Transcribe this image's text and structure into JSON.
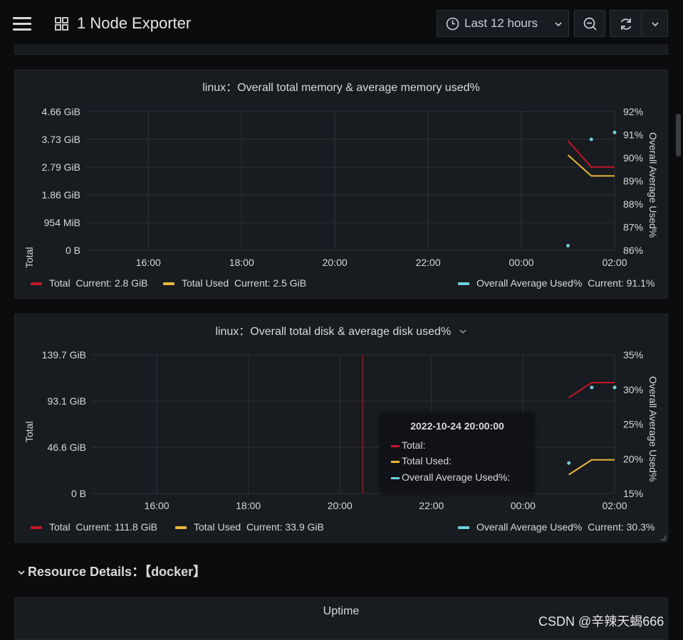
{
  "header": {
    "title": "1 Node Exporter",
    "time_range": "Last 12 hours"
  },
  "chart_data": [
    {
      "type": "line",
      "title": "linux：Overall total memory & average memory used%",
      "ylabel": "Total",
      "y2label": "Overall Average Used%",
      "x_ticks": [
        "16:00",
        "18:00",
        "20:00",
        "22:00",
        "00:00",
        "02:00"
      ],
      "y_ticks": [
        "4.66 GiB",
        "3.73 GiB",
        "2.79 GiB",
        "1.86 GiB",
        "954 MiB",
        "0 B"
      ],
      "y2_ticks": [
        "92%",
        "91%",
        "90%",
        "89%",
        "88%",
        "87%",
        "86%"
      ],
      "ylim": [
        0,
        4.66
      ],
      "y2lim": [
        86,
        92
      ],
      "x": [
        "01:00",
        "01:30",
        "02:00"
      ],
      "series": [
        {
          "name": "Total",
          "axis": "left",
          "color": "#c4162a",
          "values": [
            3.68,
            2.8,
            2.8
          ],
          "current": "Current: 2.8 GiB"
        },
        {
          "name": "Total Used",
          "axis": "left",
          "color": "#eab839",
          "values": [
            3.2,
            2.5,
            2.5
          ],
          "current": "Current: 2.5 GiB"
        },
        {
          "name": "Overall Average Used%",
          "axis": "right",
          "color": "#6ed0e0",
          "style": "points",
          "values": [
            86.2,
            90.8,
            91.1
          ],
          "current": "Current: 91.1%"
        }
      ]
    },
    {
      "type": "line",
      "title": "linux：Overall total disk & average disk used%",
      "ylabel": "Total",
      "y2label": "Overall Average Used%",
      "x_ticks": [
        "16:00",
        "18:00",
        "20:00",
        "22:00",
        "00:00",
        "02:00"
      ],
      "y_ticks": [
        "139.7 GiB",
        "93.1 GiB",
        "46.6 GiB",
        "0 B"
      ],
      "y2_ticks": [
        "35%",
        "30%",
        "25%",
        "20%",
        "15%"
      ],
      "ylim": [
        0,
        139.7
      ],
      "y2lim": [
        15,
        35
      ],
      "x": [
        "01:00",
        "01:30",
        "02:00"
      ],
      "series": [
        {
          "name": "Total",
          "axis": "left",
          "color": "#c4162a",
          "values": [
            96.5,
            111.8,
            111.8
          ],
          "current": "Current: 111.8 GiB"
        },
        {
          "name": "Total Used",
          "axis": "left",
          "color": "#eab839",
          "values": [
            19.0,
            33.9,
            33.9
          ],
          "current": "Current: 33.9 GiB"
        },
        {
          "name": "Overall Average Used%",
          "axis": "right",
          "color": "#6ed0e0",
          "style": "points",
          "values": [
            19.4,
            30.3,
            30.3
          ],
          "current": "Current: 30.3%"
        }
      ],
      "tooltip": {
        "time": "2022-10-24 20:00:00",
        "rows": [
          "Total:",
          "Total Used:",
          "Overall Average Used%:"
        ]
      }
    }
  ],
  "section": {
    "label": "Resource Details：【docker】"
  },
  "uptime_panel": {
    "title": "Uptime"
  },
  "watermark": "CSDN @辛辣天蝎666"
}
